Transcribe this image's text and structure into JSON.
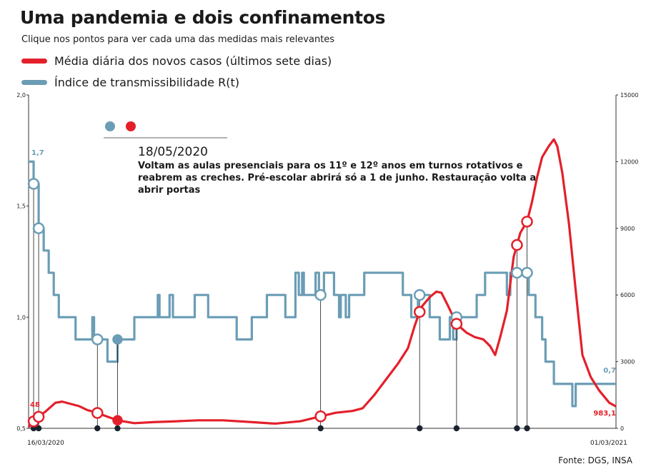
{
  "title": "Uma pandemia e dois confinamentos",
  "subtitle": "Clique nos pontos para ver cada uma das medidas mais relevantes",
  "legend": [
    {
      "label": "Média diária dos novos casos (últimos sete dias)",
      "color": "#e3202a"
    },
    {
      "label": "Índice de transmissibilidade R(t)",
      "color": "#6b9db5"
    }
  ],
  "annotation": {
    "date": "18/05/2020",
    "text": "Voltam as aulas presenciais para os 11º e 12º anos em turnos rotativos e reabrem as creches. Pré-escolar abrirá só a 1 de junho. Restauração volta a abrir portas"
  },
  "source": "Fonte: DGS, INSA",
  "colors": {
    "cases": "#e3202a",
    "rt": "#6b9db5",
    "marker": "#1b2330"
  },
  "chart_data": {
    "type": "line",
    "x_start_label": "16/03/2020",
    "x_end_label": "01/03/2021",
    "x_range": [
      "2020-03-16",
      "2021-03-01"
    ],
    "y_left": {
      "ticks": [
        "2,0",
        "1,5",
        "1,0",
        "0,5"
      ],
      "range": [
        0.5,
        2.0
      ]
    },
    "y_right": {
      "ticks": [
        "15000",
        "12000",
        "9000",
        "6000",
        "3000",
        "0"
      ],
      "range": [
        0,
        15000
      ]
    },
    "series": [
      {
        "name": "Índice de transmissibilidade R(t)",
        "axis": "left",
        "points": [
          [
            "2020-03-16",
            1.7
          ],
          [
            "2020-03-19",
            1.6
          ],
          [
            "2020-03-22",
            1.4
          ],
          [
            "2020-03-25",
            1.3
          ],
          [
            "2020-03-28",
            1.2
          ],
          [
            "2020-03-31",
            1.1
          ],
          [
            "2020-04-03",
            1.0
          ],
          [
            "2020-04-09",
            1.0
          ],
          [
            "2020-04-13",
            0.9
          ],
          [
            "2020-04-22",
            0.9
          ],
          [
            "2020-04-23",
            1.0
          ],
          [
            "2020-04-24",
            0.9
          ],
          [
            "2020-04-30",
            0.9
          ],
          [
            "2020-05-02",
            0.8
          ],
          [
            "2020-05-06",
            0.8
          ],
          [
            "2020-05-08",
            0.9
          ],
          [
            "2020-05-14",
            0.9
          ],
          [
            "2020-05-18",
            1.0
          ],
          [
            "2020-05-30",
            1.0
          ],
          [
            "2020-06-01",
            1.1
          ],
          [
            "2020-06-02",
            1.0
          ],
          [
            "2020-06-06",
            1.0
          ],
          [
            "2020-06-08",
            1.1
          ],
          [
            "2020-06-10",
            1.0
          ],
          [
            "2020-06-21",
            1.0
          ],
          [
            "2020-06-23",
            1.1
          ],
          [
            "2020-06-29",
            1.1
          ],
          [
            "2020-07-01",
            1.0
          ],
          [
            "2020-07-16",
            1.0
          ],
          [
            "2020-07-18",
            0.9
          ],
          [
            "2020-07-25",
            0.9
          ],
          [
            "2020-07-27",
            1.0
          ],
          [
            "2020-08-03",
            1.0
          ],
          [
            "2020-08-05",
            1.1
          ],
          [
            "2020-08-14",
            1.1
          ],
          [
            "2020-08-16",
            1.0
          ],
          [
            "2020-08-20",
            1.0
          ],
          [
            "2020-08-22",
            1.2
          ],
          [
            "2020-08-24",
            1.1
          ],
          [
            "2020-08-26",
            1.2
          ],
          [
            "2020-08-27",
            1.1
          ],
          [
            "2020-09-01",
            1.1
          ],
          [
            "2020-09-03",
            1.2
          ],
          [
            "2020-09-05",
            1.1
          ],
          [
            "2020-09-08",
            1.2
          ],
          [
            "2020-09-12",
            1.2
          ],
          [
            "2020-09-14",
            1.1
          ],
          [
            "2020-09-16",
            1.1
          ],
          [
            "2020-09-17",
            1.0
          ],
          [
            "2020-09-18",
            1.1
          ],
          [
            "2020-09-21",
            1.0
          ],
          [
            "2020-09-23",
            1.1
          ],
          [
            "2020-09-30",
            1.1
          ],
          [
            "2020-10-02",
            1.2
          ],
          [
            "2020-10-23",
            1.2
          ],
          [
            "2020-10-25",
            1.1
          ],
          [
            "2020-10-29",
            1.1
          ],
          [
            "2020-10-30",
            1.0
          ],
          [
            "2020-11-03",
            1.1
          ],
          [
            "2020-11-08",
            1.1
          ],
          [
            "2020-11-10",
            1.0
          ],
          [
            "2020-11-14",
            1.0
          ],
          [
            "2020-11-16",
            0.9
          ],
          [
            "2020-11-20",
            0.9
          ],
          [
            "2020-11-22",
            1.0
          ],
          [
            "2020-11-24",
            0.9
          ],
          [
            "2020-11-26",
            1.0
          ],
          [
            "2020-12-06",
            1.0
          ],
          [
            "2020-12-08",
            1.1
          ],
          [
            "2020-12-12",
            1.1
          ],
          [
            "2020-12-13",
            1.2
          ],
          [
            "2020-12-24",
            1.2
          ],
          [
            "2020-12-26",
            1.1
          ],
          [
            "2020-12-28",
            1.2
          ],
          [
            "2021-01-06",
            1.2
          ],
          [
            "2021-01-08",
            1.1
          ],
          [
            "2021-01-10",
            1.1
          ],
          [
            "2021-01-12",
            1.0
          ],
          [
            "2021-01-14",
            1.0
          ],
          [
            "2021-01-16",
            0.9
          ],
          [
            "2021-01-18",
            0.8
          ],
          [
            "2021-01-20",
            0.8
          ],
          [
            "2021-01-23",
            0.7
          ],
          [
            "2021-02-01",
            0.7
          ],
          [
            "2021-02-03",
            0.6
          ],
          [
            "2021-02-05",
            0.7
          ],
          [
            "2021-03-01",
            0.7
          ]
        ]
      },
      {
        "name": "Média diária dos novos casos (últimos sete dias)",
        "axis": "right",
        "points": [
          [
            "2020-03-16",
            48
          ],
          [
            "2020-03-20",
            400
          ],
          [
            "2020-03-26",
            750
          ],
          [
            "2020-04-01",
            1150
          ],
          [
            "2020-04-05",
            1200
          ],
          [
            "2020-04-10",
            1100
          ],
          [
            "2020-04-15",
            1000
          ],
          [
            "2020-04-20",
            820
          ],
          [
            "2020-04-25",
            720
          ],
          [
            "2020-05-01",
            550
          ],
          [
            "2020-05-08",
            360
          ],
          [
            "2020-05-18",
            230
          ],
          [
            "2020-05-30",
            280
          ],
          [
            "2020-06-10",
            310
          ],
          [
            "2020-06-25",
            360
          ],
          [
            "2020-07-10",
            360
          ],
          [
            "2020-07-25",
            290
          ],
          [
            "2020-08-10",
            210
          ],
          [
            "2020-08-25",
            320
          ],
          [
            "2020-09-05",
            520
          ],
          [
            "2020-09-15",
            700
          ],
          [
            "2020-09-25",
            780
          ],
          [
            "2020-10-01",
            900
          ],
          [
            "2020-10-08",
            1500
          ],
          [
            "2020-10-15",
            2200
          ],
          [
            "2020-10-22",
            2900
          ],
          [
            "2020-10-28",
            3600
          ],
          [
            "2020-11-01",
            4600
          ],
          [
            "2020-11-05",
            5450
          ],
          [
            "2020-11-10",
            5900
          ],
          [
            "2020-11-14",
            6150
          ],
          [
            "2020-11-17",
            6100
          ],
          [
            "2020-11-21",
            5500
          ],
          [
            "2020-11-26",
            4700
          ],
          [
            "2020-12-02",
            4300
          ],
          [
            "2020-12-07",
            4100
          ],
          [
            "2020-12-12",
            4000
          ],
          [
            "2020-12-16",
            3700
          ],
          [
            "2020-12-19",
            3300
          ],
          [
            "2020-12-22",
            4100
          ],
          [
            "2020-12-26",
            5300
          ],
          [
            "2020-12-30",
            7700
          ],
          [
            "2021-01-03",
            8800
          ],
          [
            "2021-01-07",
            9300
          ],
          [
            "2021-01-10",
            10200
          ],
          [
            "2021-01-13",
            11300
          ],
          [
            "2021-01-16",
            12200
          ],
          [
            "2021-01-20",
            12700
          ],
          [
            "2021-01-23",
            13000
          ],
          [
            "2021-01-25",
            12700
          ],
          [
            "2021-01-28",
            11500
          ],
          [
            "2021-02-01",
            9200
          ],
          [
            "2021-02-05",
            6200
          ],
          [
            "2021-02-09",
            3300
          ],
          [
            "2021-02-14",
            2300
          ],
          [
            "2021-02-19",
            1700
          ],
          [
            "2021-02-25",
            1150
          ],
          [
            "2021-03-01",
            983.1
          ]
        ]
      }
    ],
    "value_labels": [
      {
        "series": "Índice de transmissibilidade R(t)",
        "x": "2020-03-16",
        "text": "1,7"
      },
      {
        "series": "Índice de transmissibilidade R(t)",
        "x": "2021-03-01",
        "text": "0,7"
      },
      {
        "series": "Média diária dos novos casos (últimos sete dias)",
        "x": "2020-03-16",
        "text": "48"
      },
      {
        "series": "Média diária dos novos casos (últimos sete dias)",
        "x": "2021-03-01",
        "text": "983,1"
      }
    ],
    "event_dates": [
      "2020-03-19",
      "2020-03-22",
      "2020-04-26",
      "2020-05-08",
      "2020-09-06",
      "2020-11-04",
      "2020-11-26",
      "2021-01-01",
      "2021-01-07"
    ],
    "selected_event": "2020-05-08",
    "grid": false
  }
}
